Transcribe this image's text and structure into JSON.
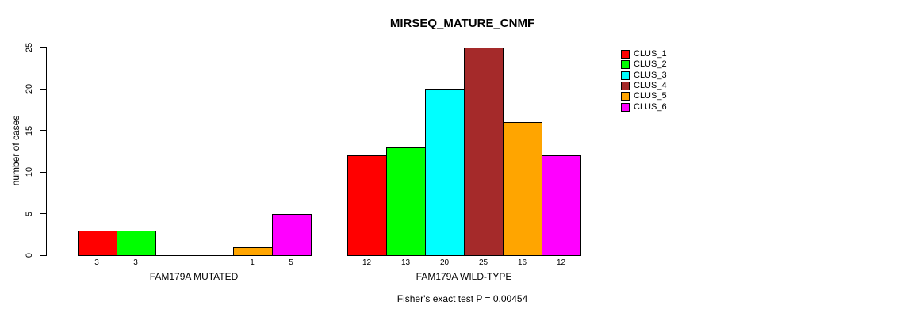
{
  "chart_data": {
    "type": "bar",
    "title": "MIRSEQ_MATURE_CNMF",
    "ylabel": "number of cases",
    "xlabel": "",
    "ylim": [
      0,
      25
    ],
    "yticks": [
      0,
      5,
      10,
      15,
      20,
      25
    ],
    "grid": false,
    "legend_position": "right",
    "categories": [
      "FAM179A MUTATED",
      "FAM179A WILD-TYPE"
    ],
    "series": [
      {
        "name": "CLUS_1",
        "color": "#FF0000",
        "values": [
          3,
          12
        ]
      },
      {
        "name": "CLUS_2",
        "color": "#00FF00",
        "values": [
          3,
          13
        ]
      },
      {
        "name": "CLUS_3",
        "color": "#00FFFF",
        "values": [
          0,
          20
        ]
      },
      {
        "name": "CLUS_4",
        "color": "#A52A2A",
        "values": [
          0,
          25
        ]
      },
      {
        "name": "CLUS_5",
        "color": "#FFA500",
        "values": [
          1,
          16
        ]
      },
      {
        "name": "CLUS_6",
        "color": "#FF00FF",
        "values": [
          5,
          12
        ]
      }
    ],
    "bar_value_labels": "shown under each bar, omitted for zero values",
    "annotation": "Fisher's exact test P = 0.00454",
    "colors": {
      "background": "#FFFFFF",
      "axis": "#000000",
      "text": "#000000"
    }
  }
}
